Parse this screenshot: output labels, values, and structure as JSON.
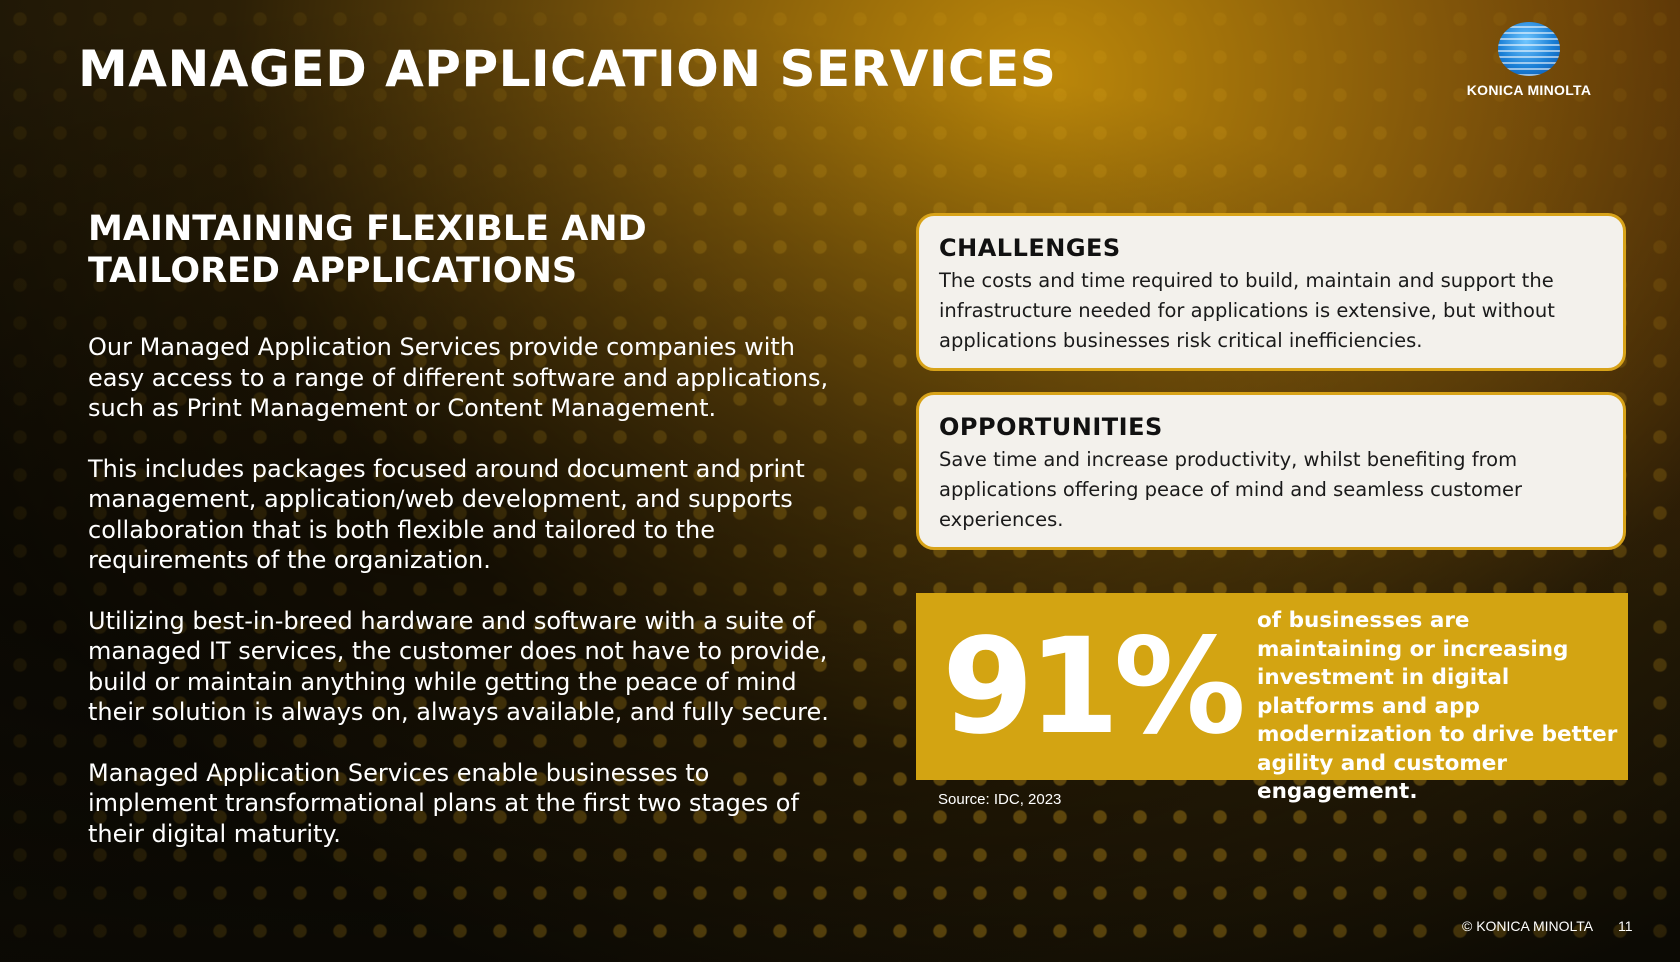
{
  "slide": {
    "title": "MANAGED APPLICATION SERVICES",
    "logo": {
      "text": "KONICA MINOLTA",
      "icon": "konica-minolta-globe-icon"
    },
    "left": {
      "subtitle": "MAINTAINING FLEXIBLE AND TAILORED APPLICATIONS",
      "paragraphs": [
        "Our Managed Application Services provide companies with easy access to a range of different software and applications, such as Print Management or Content Management.",
        "This includes packages focused around document and print management, application/web development, and supports collaboration that is both flexible and tailored to the requirements of the organization.",
        "Utilizing best-in-breed hardware and software with a suite of managed IT services, the customer does not have to provide, build or maintain anything while getting the peace of mind their solution is always on, always available, and fully secure.",
        "Managed Application Services enable businesses to implement transformational plans at the first two stages of their digital maturity."
      ]
    },
    "challenges": {
      "title": "CHALLENGES",
      "body": "The costs and time required to build, maintain and support the infrastructure needed for applications is extensive, but without applications businesses risk critical inefficiencies."
    },
    "opportunities": {
      "title": "OPPORTUNITIES",
      "body": "Save time and increase productivity, whilst benefiting from applications offering peace of mind and seamless customer experiences."
    },
    "stat": {
      "number": "91%",
      "text": "of businesses are maintaining or increasing investment in digital platforms and app modernization to drive better agility and customer engagement."
    },
    "source": "Source: IDC, 2023",
    "footer": {
      "copyright": "© KONICA MINOLTA",
      "page": "11"
    },
    "colors": {
      "accent": "#d3a412",
      "card_border": "#d8a319",
      "card_bg": "#f3f1ec"
    }
  }
}
